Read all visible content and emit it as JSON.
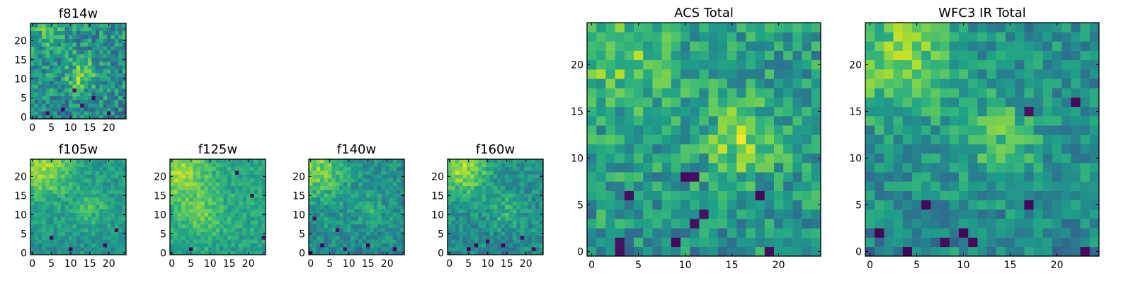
{
  "colors": {
    "colormap": [
      "#440154",
      "#482878",
      "#3e4989",
      "#31688e",
      "#26828e",
      "#1f9e89",
      "#35b779",
      "#6ece58",
      "#b5de2b",
      "#fde725"
    ],
    "frame": "#000000",
    "background": "#ffffff"
  },
  "chart_data": [
    {
      "id": "f814w",
      "type": "heatmap",
      "title": "f814w",
      "grid_size": 25,
      "seed": 814,
      "mean": 0.5,
      "noise": 0.2,
      "blobs": [
        {
          "cx": 13,
          "cy": 11,
          "sigma": 2.5,
          "amp": 0.35
        },
        {
          "cx": 4,
          "cy": 22,
          "sigma": 4,
          "amp": 0.15
        }
      ],
      "dark_pixels": [
        [
          8,
          2
        ],
        [
          13,
          3
        ],
        [
          4,
          1
        ],
        [
          20,
          1
        ],
        [
          16,
          5
        ],
        [
          11,
          7
        ]
      ],
      "xlim": [
        -0.5,
        24.5
      ],
      "ylim": [
        -0.5,
        24.5
      ],
      "xticks": [
        "0",
        "5",
        "10",
        "15",
        "20"
      ],
      "yticks": [
        "0",
        "5",
        "10",
        "15",
        "20"
      ]
    },
    {
      "id": "f105w",
      "type": "heatmap",
      "title": "f105w",
      "grid_size": 25,
      "seed": 105,
      "mean": 0.55,
      "noise": 0.1,
      "blobs": [
        {
          "cx": 3,
          "cy": 22,
          "sigma": 5,
          "amp": 0.3
        },
        {
          "cx": 15,
          "cy": 12,
          "sigma": 3,
          "amp": 0.15
        }
      ],
      "dark_pixels": [
        [
          5,
          4
        ],
        [
          10,
          1
        ],
        [
          19,
          2
        ],
        [
          22,
          6
        ]
      ],
      "xlim": [
        -0.5,
        24.5
      ],
      "ylim": [
        -0.5,
        24.5
      ],
      "xticks": [
        "0",
        "5",
        "10",
        "15",
        "20"
      ],
      "yticks": [
        "0",
        "5",
        "10",
        "15",
        "20"
      ]
    },
    {
      "id": "f125w",
      "type": "heatmap",
      "title": "f125w",
      "grid_size": 25,
      "seed": 125,
      "mean": 0.6,
      "noise": 0.1,
      "blobs": [
        {
          "cx": 2,
          "cy": 21,
          "sigma": 5,
          "amp": 0.25
        },
        {
          "cx": 8,
          "cy": 10,
          "sigma": 4,
          "amp": 0.15
        }
      ],
      "dark_pixels": [
        [
          17,
          21
        ],
        [
          21,
          15
        ],
        [
          24,
          4
        ],
        [
          5,
          1
        ]
      ],
      "xlim": [
        -0.5,
        24.5
      ],
      "ylim": [
        -0.5,
        24.5
      ],
      "xticks": [
        "0",
        "5",
        "10",
        "15",
        "20"
      ],
      "yticks": [
        "0",
        "5",
        "10",
        "15",
        "20"
      ]
    },
    {
      "id": "f140w",
      "type": "heatmap",
      "title": "f140w",
      "grid_size": 25,
      "seed": 140,
      "mean": 0.5,
      "noise": 0.12,
      "blobs": [
        {
          "cx": 2,
          "cy": 22,
          "sigma": 5,
          "amp": 0.3
        },
        {
          "cx": 15,
          "cy": 11,
          "sigma": 3,
          "amp": 0.12
        }
      ],
      "dark_pixels": [
        [
          1,
          9
        ],
        [
          3,
          2
        ],
        [
          9,
          1
        ],
        [
          15,
          2
        ],
        [
          22,
          1
        ],
        [
          7,
          6
        ],
        [
          0,
          0
        ]
      ],
      "xlim": [
        -0.5,
        24.5
      ],
      "ylim": [
        -0.5,
        24.5
      ],
      "xticks": [
        "0",
        "5",
        "10",
        "15",
        "20"
      ],
      "yticks": [
        "0",
        "5",
        "10",
        "15",
        "20"
      ]
    },
    {
      "id": "f160w",
      "type": "heatmap",
      "title": "f160w",
      "grid_size": 25,
      "seed": 160,
      "mean": 0.5,
      "noise": 0.12,
      "blobs": [
        {
          "cx": 3,
          "cy": 22,
          "sigma": 5,
          "amp": 0.35
        },
        {
          "cx": 15,
          "cy": 11,
          "sigma": 3,
          "amp": 0.15
        }
      ],
      "dark_pixels": [
        [
          5,
          1
        ],
        [
          10,
          3
        ],
        [
          14,
          2
        ],
        [
          22,
          1
        ],
        [
          7,
          2
        ],
        [
          19,
          4
        ]
      ],
      "xlim": [
        -0.5,
        24.5
      ],
      "ylim": [
        -0.5,
        24.5
      ],
      "xticks": [
        "0",
        "5",
        "10",
        "15",
        "20"
      ],
      "yticks": [
        "0",
        "5",
        "10",
        "15",
        "20"
      ]
    },
    {
      "id": "acs-total",
      "type": "heatmap",
      "title": "ACS Total",
      "grid_size": 25,
      "seed": 1001,
      "mean": 0.55,
      "noise": 0.18,
      "blobs": [
        {
          "cx": 16,
          "cy": 12,
          "sigma": 2.5,
          "amp": 0.3
        },
        {
          "cx": 3,
          "cy": 21,
          "sigma": 4,
          "amp": 0.2
        }
      ],
      "dark_pixels": [
        [
          3,
          1
        ],
        [
          10,
          8
        ],
        [
          11,
          8
        ],
        [
          12,
          4
        ],
        [
          11,
          3
        ],
        [
          18,
          6
        ],
        [
          19,
          0
        ],
        [
          9,
          1
        ],
        [
          4,
          6
        ],
        [
          3,
          0
        ]
      ],
      "xlim": [
        -0.5,
        24.5
      ],
      "ylim": [
        -0.5,
        24.5
      ],
      "xticks": [
        "0",
        "5",
        "10",
        "15",
        "20"
      ],
      "yticks": [
        "0",
        "5",
        "10",
        "15",
        "20"
      ]
    },
    {
      "id": "wfc3-ir-total",
      "type": "heatmap",
      "title": "WFC3 IR Total",
      "grid_size": 25,
      "seed": 2002,
      "mean": 0.5,
      "noise": 0.15,
      "blobs": [
        {
          "cx": 3,
          "cy": 21,
          "sigma": 4.5,
          "amp": 0.3
        },
        {
          "cx": 14,
          "cy": 12,
          "sigma": 3,
          "amp": 0.2
        }
      ],
      "dark_pixels": [
        [
          1,
          2
        ],
        [
          6,
          5
        ],
        [
          8,
          1
        ],
        [
          10,
          2
        ],
        [
          22,
          16
        ],
        [
          17,
          15
        ],
        [
          23,
          0
        ],
        [
          17,
          5
        ],
        [
          4,
          0
        ],
        [
          11,
          1
        ]
      ],
      "xlim": [
        -0.5,
        24.5
      ],
      "ylim": [
        -0.5,
        24.5
      ],
      "xticks": [
        "0",
        "5",
        "10",
        "15",
        "20"
      ],
      "yticks": [
        "0",
        "5",
        "10",
        "15",
        "20"
      ]
    }
  ]
}
